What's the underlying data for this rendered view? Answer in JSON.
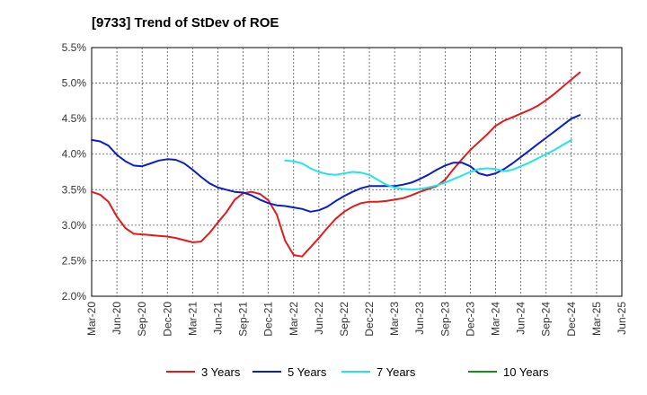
{
  "chart_data": {
    "type": "line",
    "title": "[9733]  Trend of StDev of ROE",
    "y_tick_labels": [
      "2.0%",
      "2.5%",
      "3.0%",
      "3.5%",
      "4.0%",
      "4.5%",
      "5.0%",
      "5.5%"
    ],
    "ylim": [
      2.0,
      5.5
    ],
    "x_tick_labels": [
      "Mar-20",
      "Jun-20",
      "Sep-20",
      "Dec-20",
      "Mar-21",
      "Jun-21",
      "Sep-21",
      "Dec-21",
      "Mar-22",
      "Jun-22",
      "Sep-22",
      "Dec-22",
      "Mar-23",
      "Jun-23",
      "Sep-23",
      "Dec-23",
      "Mar-24",
      "Jun-24",
      "Sep-24",
      "Dec-24",
      "Mar-25",
      "Jun-25"
    ],
    "grid": true,
    "legend_position": "bottom",
    "series": [
      {
        "name": "3 Years",
        "color": "#e31a1c",
        "start_index": 0,
        "values": [
          3.47,
          3.43,
          3.33,
          3.12,
          2.96,
          2.88,
          2.87,
          2.86,
          2.85,
          2.84,
          2.82,
          2.79,
          2.76,
          2.77,
          2.89,
          3.04,
          3.18,
          3.36,
          3.45,
          3.47,
          3.44,
          3.35,
          3.15,
          2.78,
          2.58,
          2.56,
          2.69,
          2.82,
          2.96,
          3.09,
          3.19,
          3.26,
          3.31,
          3.33,
          3.33,
          3.34,
          3.36,
          3.38,
          3.42,
          3.47,
          3.51,
          3.55,
          3.64,
          3.79,
          3.93,
          4.06,
          4.17,
          4.28,
          4.4,
          4.47,
          4.52,
          4.57,
          4.62,
          4.68,
          4.76,
          4.85,
          4.95,
          5.05,
          5.15
        ]
      },
      {
        "name": "5 Years",
        "color": "#0a1fc2",
        "start_index": 0,
        "values": [
          4.2,
          4.18,
          4.12,
          3.99,
          3.9,
          3.84,
          3.83,
          3.87,
          3.91,
          3.93,
          3.92,
          3.87,
          3.78,
          3.68,
          3.59,
          3.53,
          3.5,
          3.47,
          3.46,
          3.42,
          3.36,
          3.31,
          3.28,
          3.27,
          3.25,
          3.23,
          3.19,
          3.21,
          3.26,
          3.34,
          3.41,
          3.47,
          3.52,
          3.55,
          3.55,
          3.55,
          3.55,
          3.57,
          3.6,
          3.65,
          3.71,
          3.78,
          3.84,
          3.88,
          3.88,
          3.83,
          3.73,
          3.7,
          3.73,
          3.79,
          3.87,
          3.96,
          4.05,
          4.14,
          4.23,
          4.32,
          4.41,
          4.5,
          4.55
        ]
      },
      {
        "name": "7 Years",
        "color": "#22e5e5",
        "start_index": 23,
        "values": [
          3.91,
          3.9,
          3.87,
          3.8,
          3.75,
          3.72,
          3.71,
          3.73,
          3.75,
          3.74,
          3.71,
          3.64,
          3.57,
          3.53,
          3.51,
          3.5,
          3.51,
          3.53,
          3.56,
          3.6,
          3.65,
          3.7,
          3.75,
          3.79,
          3.8,
          3.79,
          3.76,
          3.78,
          3.83,
          3.88,
          3.94,
          4.0,
          4.06,
          4.13,
          4.2
        ]
      },
      {
        "name": "10 Years",
        "color": "#1a8c1a",
        "start_index": 0,
        "values": []
      }
    ]
  }
}
